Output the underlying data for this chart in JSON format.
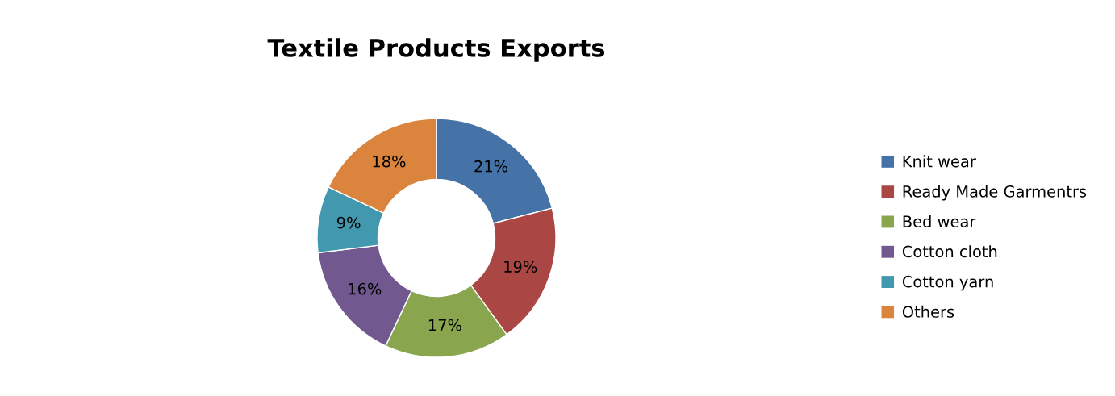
{
  "chart_data": {
    "type": "donut",
    "title": "Textile Products Exports",
    "categories": [
      "Knit wear",
      "Ready Made Garmentrs",
      "Bed wear",
      "Cotton cloth",
      "Cotton yarn",
      "Others"
    ],
    "values": [
      21,
      19,
      17,
      16,
      9,
      18
    ],
    "colors": [
      "#4572a7",
      "#aa4643",
      "#89a54e",
      "#71588f",
      "#4198af",
      "#db843d"
    ],
    "value_labels": [
      "21%",
      "19%",
      "17%",
      "16%",
      "9%",
      "18%"
    ],
    "legend": "right"
  }
}
